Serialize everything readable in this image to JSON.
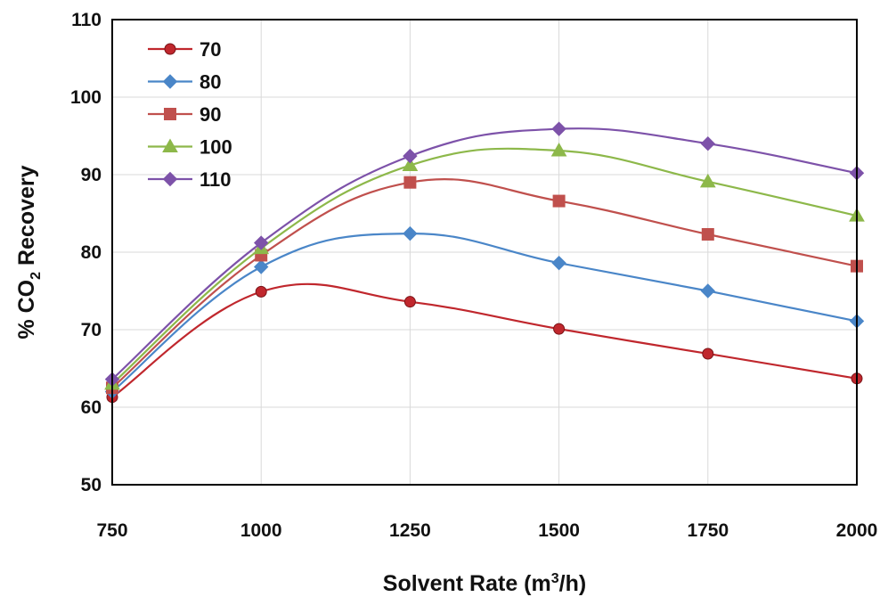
{
  "chart_data": {
    "type": "line",
    "title": "",
    "xlabel": "Solvent Rate (m³/h)",
    "xlabel_parts": {
      "pre": "Solvent Rate (m",
      "sup": "3",
      "post": "/h)"
    },
    "ylabel": "% CO₂ Recovery",
    "ylabel_parts": {
      "pre": "% CO",
      "sub": "2",
      "post": " Recovery"
    },
    "x": [
      750,
      1000,
      1250,
      1500,
      1750,
      2000
    ],
    "xlim": [
      750,
      2000
    ],
    "ylim": [
      50,
      110
    ],
    "xticks": [
      "750",
      "1000",
      "1250",
      "1500",
      "1750",
      "2000"
    ],
    "yticks": [
      "50",
      "60",
      "70",
      "80",
      "90",
      "100",
      "110"
    ],
    "grid": true,
    "legend_position": "top-left",
    "series": [
      {
        "name": "70",
        "color": "#c0272d",
        "marker": "circle",
        "values": [
          61.3,
          74.9,
          73.6,
          70.1,
          66.9,
          63.7
        ]
      },
      {
        "name": "80",
        "color": "#4a86c8",
        "marker": "diamond",
        "values": [
          62.0,
          78.1,
          82.4,
          78.6,
          75.0,
          71.1
        ]
      },
      {
        "name": "90",
        "color": "#c0504d",
        "marker": "square",
        "values": [
          62.5,
          79.6,
          89.0,
          86.6,
          82.3,
          78.2
        ]
      },
      {
        "name": "100",
        "color": "#8db84a",
        "marker": "triangle",
        "values": [
          63.0,
          80.5,
          91.2,
          93.1,
          89.1,
          84.7
        ]
      },
      {
        "name": "110",
        "color": "#7d52a9",
        "marker": "diamond",
        "values": [
          63.6,
          81.2,
          92.4,
          95.9,
          94.0,
          90.2
        ]
      }
    ]
  }
}
